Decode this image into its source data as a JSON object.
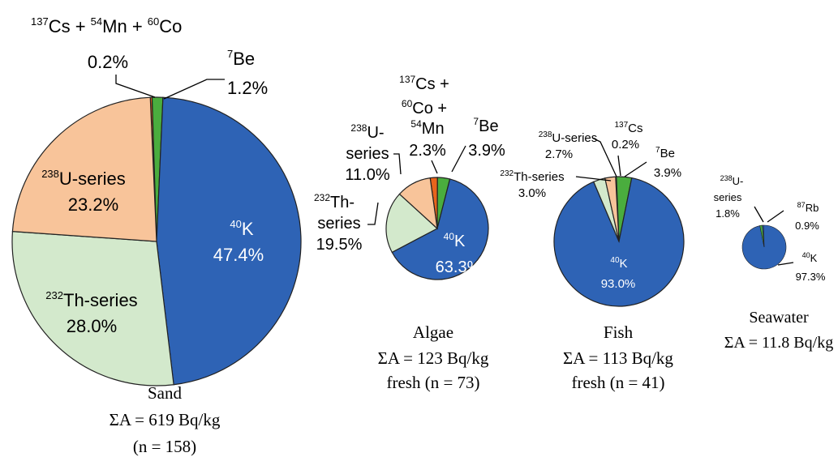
{
  "colors": {
    "K40": "#2e63b5",
    "Th232": "#d3e9cc",
    "U238": "#f8c49a",
    "CsMnCo": "#e8641c",
    "Be7": "#4aad3e",
    "Rb87": "#2e63b5",
    "Cs137": "#f0d060",
    "edge": "#222222"
  },
  "chart_data": [
    {
      "type": "pie",
      "caption": [
        "Sand",
        "ΣA = 619 Bq/kg",
        "(n = 158)"
      ],
      "total_Bq_per_kg": 619,
      "n": 158,
      "slices": [
        {
          "name": "137Cs + 54Mn + 60Co",
          "value": 0.2,
          "color_key": "CsMnCo"
        },
        {
          "name": "7Be",
          "value": 1.2,
          "color_key": "Be7"
        },
        {
          "name": "40K",
          "value": 47.4,
          "color_key": "K40"
        },
        {
          "name": "232Th-series",
          "value": 28.0,
          "color_key": "Th232"
        },
        {
          "name": "238U-series",
          "value": 23.2,
          "color_key": "U238"
        }
      ],
      "labels": {
        "cs": {
          "l1": "137",
          "l2": "Cs + ",
          "l3": "54",
          "l4": "Mn + ",
          "l5": "60",
          "l6": "Co",
          "pct": "0.2%"
        },
        "be": {
          "sup": "7",
          "txt": "Be",
          "pct": "1.2%"
        },
        "k": {
          "sup": "40",
          "txt": "K",
          "pct": "47.4%"
        },
        "th": {
          "sup": "232",
          "txt": "Th-series",
          "pct": "28.0%"
        },
        "u": {
          "sup": "238",
          "txt": "U-series",
          "pct": "23.2%"
        }
      }
    },
    {
      "type": "pie",
      "caption": [
        "Algae",
        "ΣA = 123 Bq/kg",
        "fresh (n = 73)"
      ],
      "total_Bq_per_kg": 123,
      "n": 73,
      "slices": [
        {
          "name": "137Cs + 60Co + 54Mn",
          "value": 2.3,
          "color_key": "CsMnCo"
        },
        {
          "name": "7Be",
          "value": 3.9,
          "color_key": "Be7"
        },
        {
          "name": "40K",
          "value": 63.3,
          "color_key": "K40"
        },
        {
          "name": "232Th-series",
          "value": 19.5,
          "color_key": "Th232"
        },
        {
          "name": "238U-series",
          "value": 11.0,
          "color_key": "U238"
        }
      ],
      "labels": {
        "cs": {
          "l1": "137",
          "l2": "Cs +",
          "l3": "60",
          "l4": "Co +",
          "l5": "54",
          "l6": "Mn",
          "pct": "2.3%"
        },
        "be": {
          "sup": "7",
          "txt": "Be",
          "pct": "3.9%"
        },
        "k": {
          "sup": "40",
          "txt": "K",
          "pct": "63.3%"
        },
        "th": {
          "sup": "232",
          "txt": "Th-",
          "txt2": "series",
          "pct": "19.5%"
        },
        "u": {
          "sup": "238",
          "txt": "U-",
          "txt2": "series",
          "pct": "11.0%"
        }
      }
    },
    {
      "type": "pie",
      "caption": [
        "Fish",
        "ΣA = 113 Bq/kg",
        "fresh (n = 41)"
      ],
      "total_Bq_per_kg": 113,
      "n": 41,
      "slices": [
        {
          "name": "137Cs",
          "value": 0.2,
          "color_key": "Cs137"
        },
        {
          "name": "7Be",
          "value": 3.9,
          "color_key": "Be7"
        },
        {
          "name": "40K",
          "value": 93.0,
          "color_key": "K40"
        },
        {
          "name": "232Th-series",
          "value": 3.0,
          "color_key": "Th232"
        },
        {
          "name": "238U-series",
          "value": 2.7,
          "color_key": "U238"
        }
      ],
      "labels": {
        "cs": {
          "sup": "137",
          "txt": "Cs",
          "pct": "0.2%"
        },
        "be": {
          "sup": "7",
          "txt": "Be",
          "pct": "3.9%"
        },
        "k": {
          "sup": "40",
          "txt": "K",
          "pct": "93.0%"
        },
        "th": {
          "sup": "232",
          "txt": "Th-series",
          "pct": "3.0%"
        },
        "u": {
          "sup": "238",
          "txt": "U-series",
          "pct": "2.7%"
        }
      }
    },
    {
      "type": "pie",
      "caption": [
        "Seawater",
        "ΣA = 11.8 Bq/kg"
      ],
      "total_Bq_per_kg": 11.8,
      "slices": [
        {
          "name": "87Rb",
          "value": 0.9,
          "color_key": "Rb87"
        },
        {
          "name": "40K",
          "value": 97.3,
          "color_key": "K40"
        },
        {
          "name": "238U-series",
          "value": 1.8,
          "color_key": "Be7"
        }
      ],
      "labels": {
        "rb": {
          "sup": "87",
          "txt": "Rb",
          "pct": "0.9%"
        },
        "k": {
          "sup": "40",
          "txt": "K",
          "pct": "97.3%"
        },
        "u": {
          "sup": "238",
          "txt": "U-",
          "txt2": "series",
          "pct": "1.8%"
        }
      }
    }
  ]
}
